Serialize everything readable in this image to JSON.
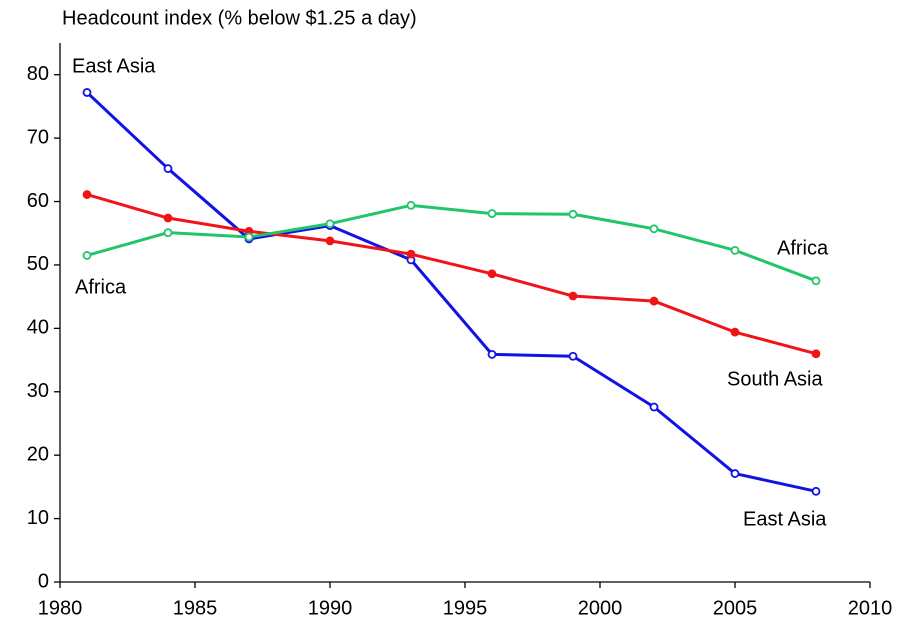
{
  "chart_data": {
    "type": "line",
    "title": "Headcount index (% below $1.25 a day)",
    "x": [
      1981,
      1984,
      1987,
      1990,
      1993,
      1996,
      1999,
      2002,
      2005,
      2008
    ],
    "series": [
      {
        "name": "East Asia",
        "color": "#1212e6",
        "marker": "open",
        "values": [
          77.2,
          65.2,
          54.1,
          56.2,
          50.8,
          35.9,
          35.6,
          27.6,
          17.1,
          14.3
        ]
      },
      {
        "name": "South Asia",
        "color": "#f01418",
        "marker": "filled",
        "values": [
          61.1,
          57.4,
          55.3,
          53.8,
          51.7,
          48.6,
          45.1,
          44.3,
          39.4,
          36.0
        ]
      },
      {
        "name": "Africa",
        "color": "#22c46c",
        "marker": "open",
        "values": [
          51.5,
          55.1,
          54.4,
          56.5,
          59.4,
          58.1,
          58.0,
          55.7,
          52.3,
          47.5
        ]
      }
    ],
    "xlim": [
      1980,
      2010
    ],
    "xticks": [
      1980,
      1985,
      1990,
      1995,
      2000,
      2005,
      2010
    ],
    "ylim": [
      0,
      85
    ],
    "yticks": [
      0,
      10,
      20,
      30,
      40,
      50,
      60,
      70,
      80
    ],
    "grid": false
  }
}
